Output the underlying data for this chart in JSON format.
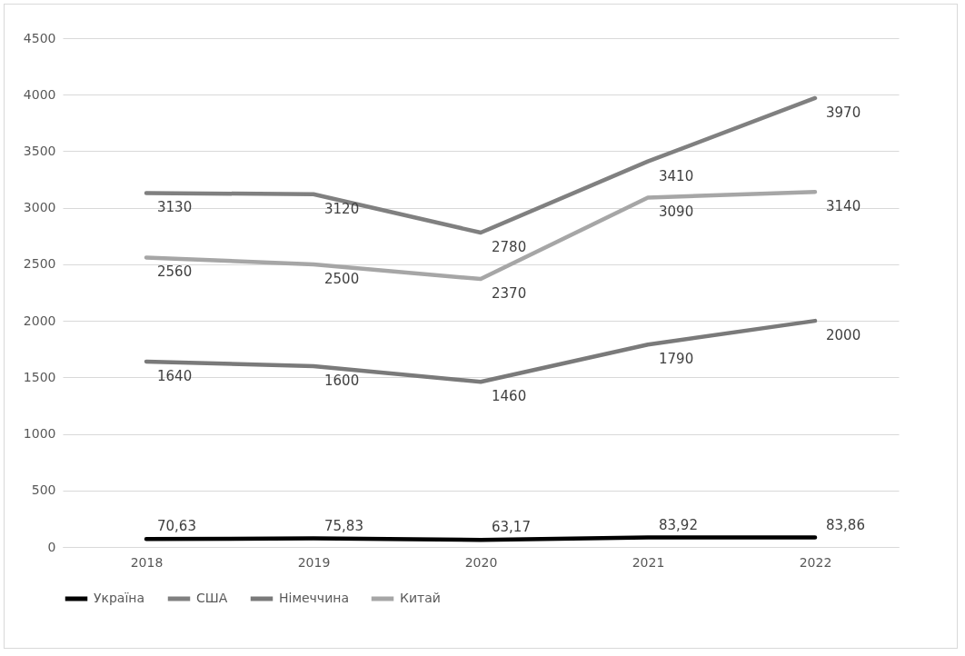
{
  "chart_data": {
    "type": "line",
    "categories": [
      "2018",
      "2019",
      "2020",
      "2021",
      "2022"
    ],
    "series": [
      {
        "name": "Україна",
        "color": "#000000",
        "values": [
          70.63,
          75.83,
          63.17,
          83.92,
          83.86
        ],
        "value_labels": [
          "70,63",
          "75,83",
          "63,17",
          "83,92",
          "83,86"
        ]
      },
      {
        "name": "США",
        "color": "#808080",
        "values": [
          3130,
          3120,
          2780,
          3410,
          3970
        ],
        "value_labels": [
          "3130",
          "3120",
          "2780",
          "3410",
          "3970"
        ]
      },
      {
        "name": "Німеччина",
        "color": "#7a7a7a",
        "values": [
          1640,
          1600,
          1460,
          1790,
          2000
        ],
        "value_labels": [
          "1640",
          "1600",
          "1460",
          "1790",
          "2000"
        ]
      },
      {
        "name": "Китай",
        "color": "#a6a6a6",
        "values": [
          2560,
          2500,
          2370,
          3090,
          3140
        ],
        "value_labels": [
          "2560",
          "2500",
          "2370",
          "3090",
          "3140"
        ]
      }
    ],
    "ylim": [
      0,
      4500
    ],
    "yticks": [
      0,
      500,
      1000,
      1500,
      2000,
      2500,
      3000,
      3500,
      4000,
      4500
    ],
    "grid": "y",
    "legend": "bottom",
    "marker": "none",
    "line_style": "solid"
  }
}
